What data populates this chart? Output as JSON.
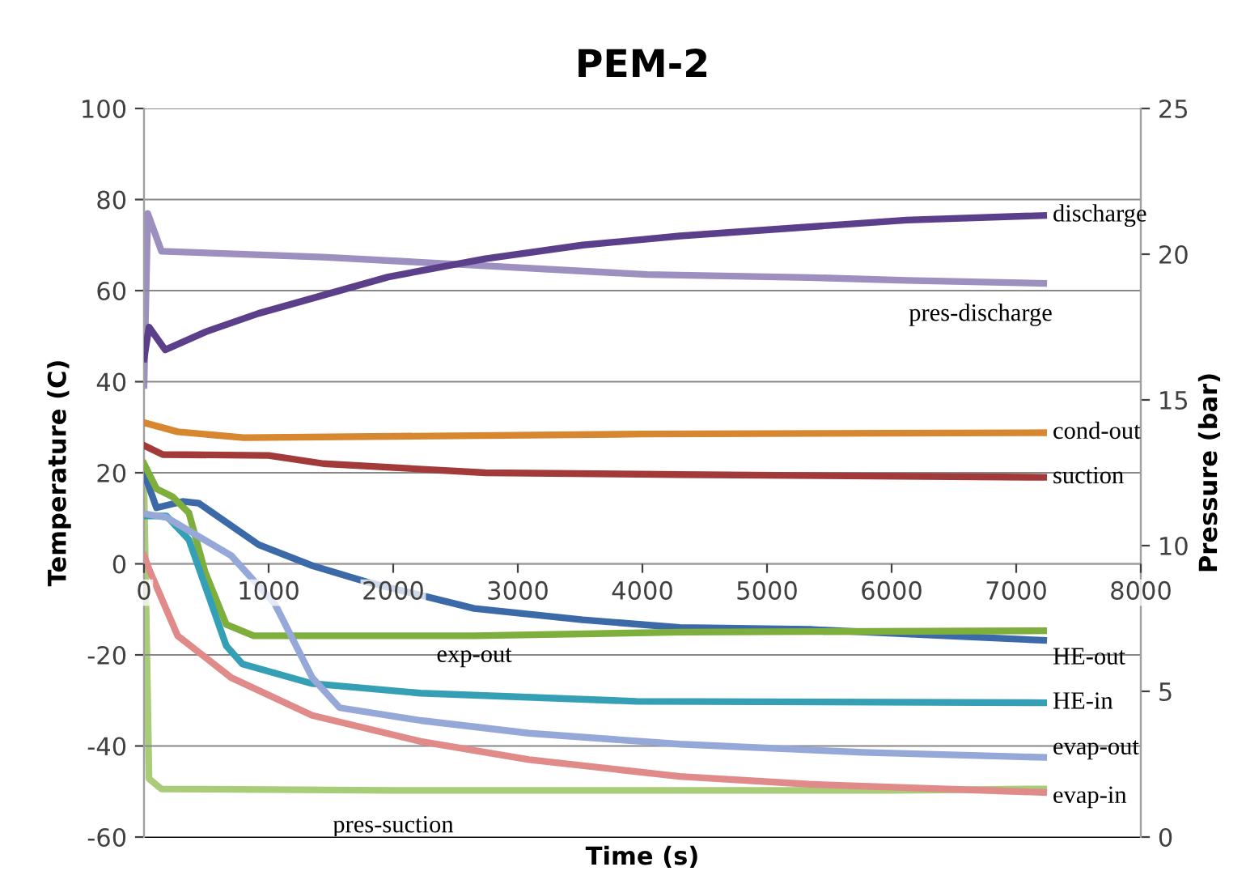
{
  "chart_data": {
    "type": "line",
    "title": "PEM-2",
    "xlabel": "Time (s)",
    "ylabel": "Temperature (C)",
    "y2label": "Pressure (bar)",
    "xlim": [
      0,
      8000
    ],
    "xticks": [
      0,
      1000,
      2000,
      3000,
      4000,
      5000,
      6000,
      7000,
      8000
    ],
    "ylim": [
      -60,
      100
    ],
    "yticks": [
      -60,
      -40,
      -20,
      0,
      20,
      40,
      60,
      80,
      100
    ],
    "y2lim": [
      0,
      25
    ],
    "y2ticks": [
      0,
      5,
      10,
      15,
      20,
      25
    ],
    "grid": "y",
    "legend": false,
    "marker": "none",
    "line_style": "solid",
    "series": [
      {
        "name": "discharge",
        "color": "#5b3f8a",
        "x": [
          0,
          40,
          170,
          500,
          920,
          1440,
          1960,
          2740,
          3520,
          4300,
          5340,
          6120,
          7220
        ],
        "values": [
          45,
          52,
          47,
          51,
          55,
          59,
          63,
          67,
          70,
          72,
          74,
          75.5,
          76.5
        ]
      },
      {
        "name": "pres-discharge",
        "color": "#9d8fc0",
        "axis": "y2",
        "x": [
          0,
          30,
          140,
          1440,
          2740,
          4040,
          5340,
          6120,
          7220
        ],
        "values": [
          15.5,
          21.4,
          20.1,
          19.9,
          19.6,
          19.3,
          19.2,
          19.1,
          19.0
        ]
      },
      {
        "name": "cond-out",
        "color": "#d7872f",
        "x": [
          0,
          270,
          800,
          2000,
          4000,
          7220
        ],
        "values": [
          31,
          29,
          27.7,
          28,
          28.5,
          28.8
        ]
      },
      {
        "name": "suction",
        "color": "#a33a3a",
        "x": [
          0,
          150,
          1000,
          1440,
          2740,
          4300,
          7220
        ],
        "values": [
          26,
          24,
          23.8,
          22,
          20,
          19.6,
          19
        ]
      },
      {
        "name": "HE-out",
        "color": "#3c6aa8",
        "x": [
          0,
          100,
          310,
          440,
          920,
          1350,
          1790,
          2650,
          3520,
          4300,
          5340,
          7220
        ],
        "values": [
          20,
          12.3,
          13.7,
          13.3,
          4.2,
          -0.4,
          -4,
          -9.8,
          -12.3,
          -14,
          -14.4,
          -16.8
        ]
      },
      {
        "name": "exp-out",
        "color": "#7eae3c",
        "x": [
          0,
          100,
          230,
          360,
          490,
          660,
          880,
          2650,
          4300,
          7220
        ],
        "values": [
          22,
          16.5,
          14.7,
          11.2,
          -1.8,
          -13.3,
          -15.8,
          -15.8,
          -15,
          -14.7
        ]
      },
      {
        "name": "HE-in",
        "color": "#35a0b5",
        "x": [
          0,
          180,
          360,
          660,
          790,
          1350,
          2220,
          3950,
          7220
        ],
        "values": [
          10.5,
          10.5,
          5.3,
          -18,
          -22,
          -26.3,
          -28.4,
          -30.2,
          -30.5
        ]
      },
      {
        "name": "evap-out",
        "color": "#95a8d8",
        "x": [
          0,
          180,
          700,
          1050,
          1350,
          1570,
          2220,
          3090,
          4300,
          5770,
          7220
        ],
        "values": [
          11,
          10.2,
          1.8,
          -8.8,
          -25,
          -31.6,
          -34.4,
          -37.2,
          -39.6,
          -41.4,
          -42.5
        ]
      },
      {
        "name": "evap-in",
        "color": "#e08a8a",
        "x": [
          0,
          50,
          270,
          700,
          1350,
          2220,
          3090,
          4300,
          5340,
          7220
        ],
        "values": [
          1.8,
          -1.8,
          -15.8,
          -25,
          -33.3,
          -39,
          -43,
          -46.7,
          -48.4,
          -50.2
        ]
      },
      {
        "name": "pres-suction",
        "color": "#a8cc78",
        "axis": "y2",
        "x": [
          0,
          40,
          140,
          2000,
          4000,
          6000,
          7220
        ],
        "values": [
          12,
          2.0,
          1.65,
          1.6,
          1.6,
          1.6,
          1.65
        ]
      }
    ]
  }
}
